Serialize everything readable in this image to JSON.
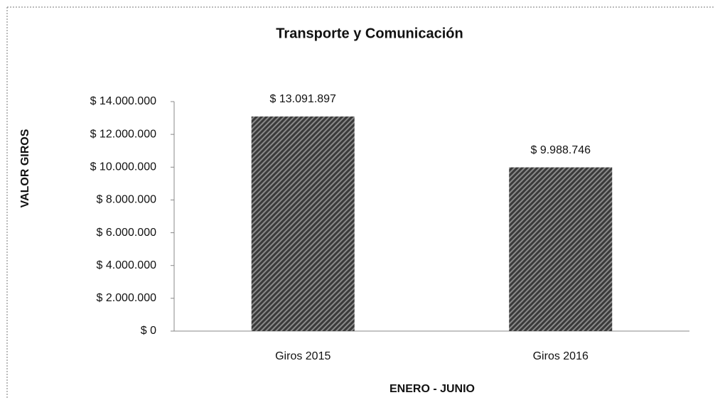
{
  "chart_data": {
    "type": "bar",
    "title": "Transporte y Comunicación",
    "x_label": "ENERO - JUNIO",
    "y_label": "VALOR GIROS",
    "categories": [
      "Giros 2015",
      "Giros 2016"
    ],
    "values": [
      13091897,
      9988746
    ],
    "value_labels": [
      "$ 13.091.897",
      "$ 9.988.746"
    ],
    "color": "#3a3a3a",
    "ylim": [
      0,
      14000000
    ],
    "yticks": [
      {
        "value": 0,
        "label": "$ 0"
      },
      {
        "value": 2000000,
        "label": "$ 2.000.000"
      },
      {
        "value": 4000000,
        "label": "$ 4.000.000"
      },
      {
        "value": 6000000,
        "label": "$ 6.000.000"
      },
      {
        "value": 8000000,
        "label": "$ 8.000.000"
      },
      {
        "value": 10000000,
        "label": "$ 10.000.000"
      },
      {
        "value": 12000000,
        "label": "$ 12.000.000"
      },
      {
        "value": 14000000,
        "label": "$ 14.000.000"
      }
    ],
    "grid": false
  }
}
